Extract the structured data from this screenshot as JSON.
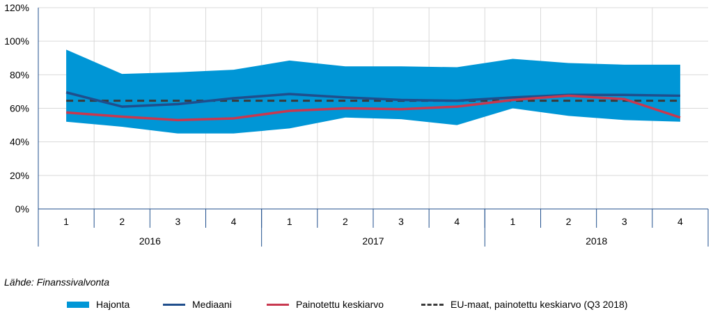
{
  "source_note": "Lähde: Finanssivalvonta",
  "chart_data": {
    "type": "area",
    "categories": [
      "1",
      "2",
      "3",
      "4",
      "1",
      "2",
      "3",
      "4",
      "1",
      "2",
      "3",
      "4"
    ],
    "groups": [
      {
        "label": "2016",
        "start": 0,
        "end": 3
      },
      {
        "label": "2017",
        "start": 4,
        "end": 7
      },
      {
        "label": "2018",
        "start": 8,
        "end": 11
      }
    ],
    "ylim": [
      0,
      120
    ],
    "yticks": [
      0,
      20,
      40,
      60,
      80,
      100,
      120
    ],
    "ytick_labels": [
      "0%",
      "20%",
      "40%",
      "60%",
      "80%",
      "100%",
      "120%"
    ],
    "grid": true,
    "legend_placement": "bottom",
    "band": {
      "name": "Hajonta",
      "color": "#0096D6",
      "upper": [
        95,
        80.5,
        81.5,
        83,
        88.5,
        85,
        85,
        84.5,
        89.5,
        87,
        86,
        86
      ],
      "lower": [
        52,
        49,
        45,
        45,
        48,
        54.5,
        53.5,
        50,
        60,
        55.5,
        53,
        52
      ]
    },
    "series": [
      {
        "name": "Mediaani",
        "color": "#1F4E8C",
        "style": "solid",
        "values": [
          69.5,
          61,
          62.5,
          66,
          68.5,
          66.5,
          65,
          64.5,
          66.5,
          68,
          68,
          67.5
        ]
      },
      {
        "name": "Painotettu keskiarvo",
        "color": "#C8384F",
        "style": "solid",
        "values": [
          57.5,
          55,
          53,
          54,
          58.5,
          60,
          59.5,
          61,
          65,
          67.5,
          65.5,
          54.5
        ]
      },
      {
        "name": "EU-maat, painotettu keskiarvo (Q3 2018)",
        "color": "#3A3A3A",
        "style": "dashed",
        "values": [
          64.5,
          64.5,
          64.5,
          64.5,
          64.5,
          64.5,
          64.5,
          64.5,
          64.5,
          64.5,
          64.5,
          64.5
        ]
      }
    ]
  }
}
